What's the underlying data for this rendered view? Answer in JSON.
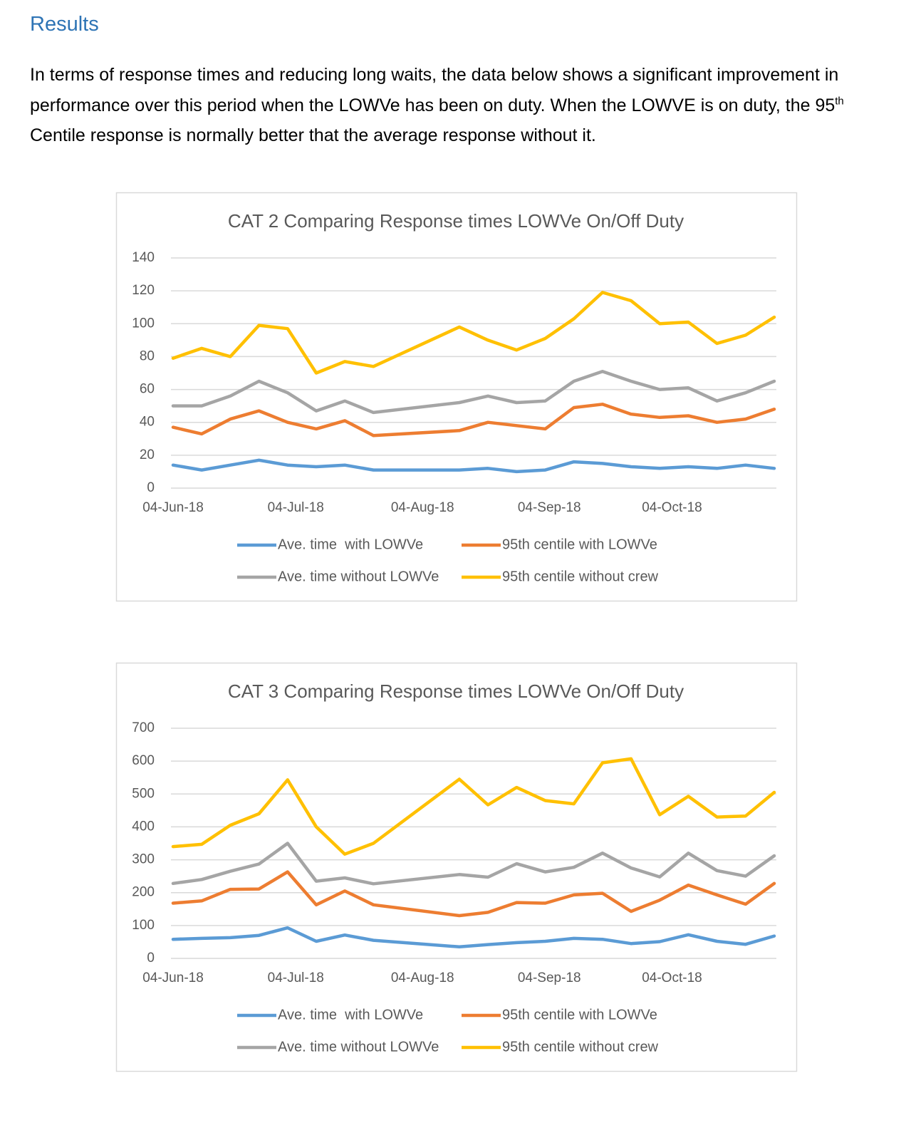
{
  "heading": "Results",
  "paragraph": [
    "In terms of response times and reducing long waits, the data below shows a significant improvement in performance over this period when the LOWVe has been on duty.  When the LOWVE is on duty, the 95",
    "th",
    " Centile response is normally better that the average response without it."
  ],
  "chart_data": [
    {
      "type": "line",
      "title": "CAT 2 Comparing Response times LOWVe On/Off Duty",
      "x": [
        "2018-06-04",
        "2018-06-11",
        "2018-06-18",
        "2018-06-25",
        "2018-07-02",
        "2018-07-09",
        "2018-07-16",
        "2018-07-23",
        "2018-08-13",
        "2018-08-20",
        "2018-08-27",
        "2018-09-03",
        "2018-09-10",
        "2018-09-17",
        "2018-09-24",
        "2018-10-01",
        "2018-10-08",
        "2018-10-15",
        "2018-10-22",
        "2018-10-29"
      ],
      "xlim": [
        "2018-06-04",
        "2018-10-29"
      ],
      "xticks": [
        {
          "value": "2018-06-04",
          "label": "04-Jun-18"
        },
        {
          "value": "2018-07-04",
          "label": "04-Jul-18"
        },
        {
          "value": "2018-08-04",
          "label": "04-Aug-18"
        },
        {
          "value": "2018-09-04",
          "label": "04-Sep-18"
        },
        {
          "value": "2018-10-04",
          "label": "04-Oct-18"
        }
      ],
      "ylim": [
        0,
        140
      ],
      "yticks": [
        0,
        20,
        40,
        60,
        80,
        100,
        120,
        140
      ],
      "grid": true,
      "legend": "bottom",
      "series": [
        {
          "name": "Ave. time  with LOWVe",
          "color": "#5b9bd5",
          "values": [
            14,
            11,
            14,
            17,
            14,
            13,
            14,
            11,
            11,
            12,
            10,
            11,
            16,
            15,
            13,
            12,
            13,
            12,
            14,
            12
          ]
        },
        {
          "name": "95th centile with LOWVe",
          "color": "#ed7d31",
          "values": [
            37,
            33,
            42,
            47,
            40,
            36,
            41,
            32,
            35,
            40,
            38,
            36,
            49,
            51,
            45,
            43,
            44,
            40,
            42,
            48
          ]
        },
        {
          "name": "Ave. time without LOWVe",
          "color": "#a5a5a5",
          "values": [
            50,
            50,
            56,
            65,
            58,
            47,
            53,
            46,
            52,
            56,
            52,
            53,
            65,
            71,
            65,
            60,
            61,
            53,
            58,
            65
          ]
        },
        {
          "name": "95th centile without crew",
          "color": "#ffc000",
          "values": [
            79,
            85,
            80,
            99,
            97,
            70,
            77,
            74,
            98,
            90,
            84,
            91,
            103,
            119,
            114,
            100,
            101,
            88,
            93,
            104
          ]
        }
      ]
    },
    {
      "type": "line",
      "title": "CAT 3 Comparing Response times LOWVe On/Off Duty",
      "x": [
        "2018-06-04",
        "2018-06-11",
        "2018-06-18",
        "2018-06-25",
        "2018-07-02",
        "2018-07-09",
        "2018-07-16",
        "2018-07-23",
        "2018-08-13",
        "2018-08-20",
        "2018-08-27",
        "2018-09-03",
        "2018-09-10",
        "2018-09-17",
        "2018-09-24",
        "2018-10-01",
        "2018-10-08",
        "2018-10-15",
        "2018-10-22",
        "2018-10-29"
      ],
      "xlim": [
        "2018-06-04",
        "2018-10-29"
      ],
      "xticks": [
        {
          "value": "2018-06-04",
          "label": "04-Jun-18"
        },
        {
          "value": "2018-07-04",
          "label": "04-Jul-18"
        },
        {
          "value": "2018-08-04",
          "label": "04-Aug-18"
        },
        {
          "value": "2018-09-04",
          "label": "04-Sep-18"
        },
        {
          "value": "2018-10-04",
          "label": "04-Oct-18"
        }
      ],
      "ylim": [
        0,
        700
      ],
      "yticks": [
        0,
        100,
        200,
        300,
        400,
        500,
        600,
        700
      ],
      "grid": true,
      "legend": "bottom",
      "series": [
        {
          "name": "Ave. time  with LOWVe",
          "color": "#5b9bd5",
          "values": [
            58,
            61,
            63,
            70,
            93,
            52,
            71,
            55,
            35,
            42,
            48,
            52,
            61,
            58,
            45,
            51,
            72,
            52,
            43,
            68
          ]
        },
        {
          "name": "95th centile with LOWVe",
          "color": "#ed7d31",
          "values": [
            168,
            175,
            210,
            211,
            263,
            163,
            205,
            163,
            130,
            140,
            170,
            168,
            193,
            198,
            143,
            177,
            223,
            193,
            165,
            228
          ]
        },
        {
          "name": "Ave. time without LOWVe",
          "color": "#a5a5a5",
          "values": [
            228,
            240,
            265,
            287,
            350,
            235,
            245,
            227,
            255,
            247,
            288,
            263,
            277,
            320,
            275,
            248,
            320,
            267,
            250,
            312
          ]
        },
        {
          "name": "95th centile without crew",
          "color": "#ffc000",
          "values": [
            340,
            347,
            405,
            440,
            543,
            400,
            317,
            350,
            545,
            467,
            520,
            480,
            470,
            595,
            607,
            437,
            493,
            430,
            433,
            505
          ]
        }
      ]
    }
  ]
}
